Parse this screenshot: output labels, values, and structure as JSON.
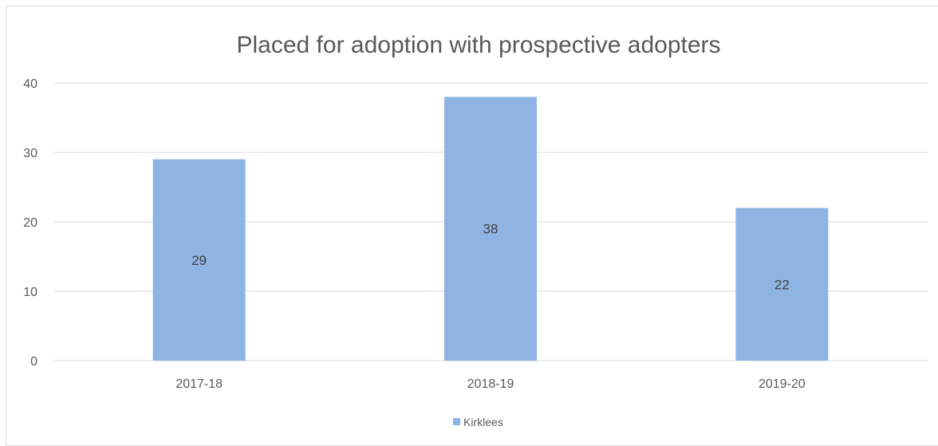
{
  "chart_data": {
    "type": "bar",
    "title": "Placed for adoption with prospective adopters",
    "categories": [
      "2017-18",
      "2018-19",
      "2019-20"
    ],
    "series": [
      {
        "name": "Kirklees",
        "values": [
          29,
          38,
          22
        ],
        "color": "#8eb4e3"
      }
    ],
    "ylim": [
      0,
      40
    ],
    "yticks": [
      0,
      10,
      20,
      30,
      40
    ],
    "grid": true,
    "data_labels": true,
    "legend_position": "bottom",
    "colors": {
      "gridline": "#d9d9d9",
      "text": "#595959",
      "label": "#404040",
      "border": "#d9d9d9"
    }
  }
}
